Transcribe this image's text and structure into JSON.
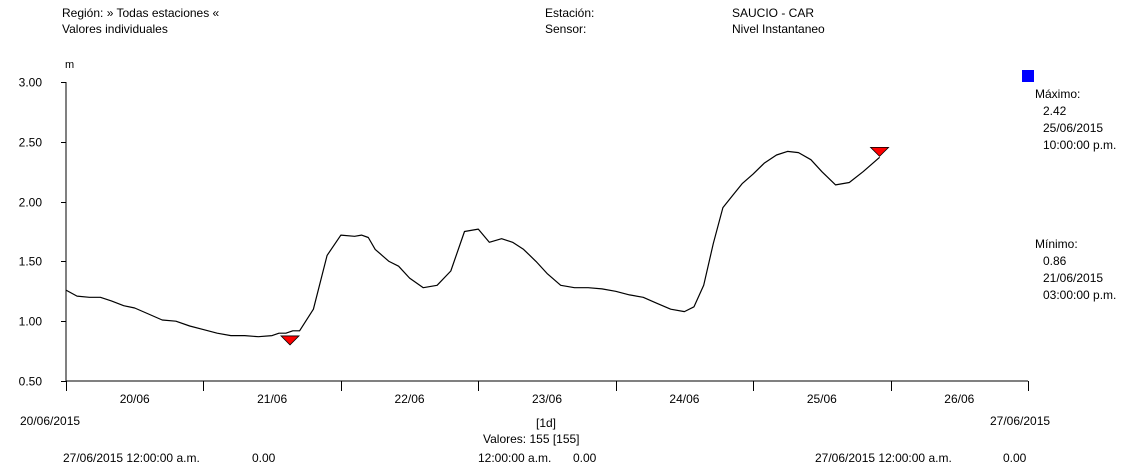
{
  "header": {
    "region": "Región: » Todas estaciones «",
    "values_mode": "Valores individuales",
    "station_label": "Estación:",
    "station_value": "SAUCIO - CAR",
    "sensor_label": "Sensor:",
    "sensor_value": "Nivel Instantaneo"
  },
  "stats": {
    "max_label": "Máximo:",
    "max_value": "2.42",
    "max_date": "25/06/2015",
    "max_time": "10:00:00 p.m.",
    "min_label": "Mínimo:",
    "min_value": "0.86",
    "min_date": "21/06/2015",
    "min_time": "03:00:00 p.m.",
    "marker_color": "#0000ff"
  },
  "footer": {
    "start_date": "20/06/2015",
    "end_date": "27/06/2015",
    "interval": "[1d]",
    "count": "Valores: 155 [155]",
    "left_stamp": "27/06/2015 12:00:00 a.m.",
    "left_value": "0.00",
    "mid_stamp": "12:00:00 a.m.",
    "mid_value": "0.00",
    "right_stamp": "27/06/2015 12:00:00 a.m.",
    "right_value": "0.00"
  },
  "chart_data": {
    "type": "line",
    "ylabel": "m",
    "ylim": [
      0.5,
      3.0
    ],
    "yticks": [
      "0.50",
      "1.00",
      "1.50",
      "2.00",
      "2.50",
      "3.00"
    ],
    "xlim_days": [
      0,
      7
    ],
    "xtick_labels": [
      "20/06",
      "21/06",
      "22/06",
      "23/06",
      "24/06",
      "25/06",
      "26/06"
    ],
    "line_color": "#000000",
    "marker_color": "#ff0000",
    "series": [
      {
        "x": [
          0.0,
          0.08,
          0.17,
          0.25,
          0.33,
          0.42,
          0.5,
          0.6,
          0.7,
          0.8,
          0.9,
          1.0,
          1.1,
          1.2,
          1.3,
          1.4,
          1.5,
          1.55,
          1.6,
          1.65,
          1.7,
          1.8,
          1.9,
          2.0,
          2.1,
          2.15,
          2.2,
          2.25,
          2.3,
          2.35,
          2.42,
          2.5,
          2.6,
          2.7,
          2.8,
          2.9,
          3.0,
          3.08,
          3.17,
          3.25,
          3.33,
          3.42,
          3.5,
          3.6,
          3.7,
          3.8,
          3.9,
          4.0,
          4.1,
          4.2,
          4.3,
          4.4,
          4.5,
          4.57,
          4.64,
          4.71,
          4.78,
          4.85,
          4.92,
          5.0,
          5.08,
          5.17,
          5.25,
          5.33,
          5.42,
          5.5,
          5.6,
          5.7,
          5.8,
          5.92
        ],
        "y": [
          1.26,
          1.21,
          1.2,
          1.2,
          1.17,
          1.13,
          1.11,
          1.06,
          1.01,
          1.0,
          0.96,
          0.93,
          0.9,
          0.88,
          0.88,
          0.87,
          0.88,
          0.9,
          0.9,
          0.92,
          0.92,
          1.1,
          1.55,
          1.72,
          1.71,
          1.72,
          1.7,
          1.6,
          1.55,
          1.5,
          1.46,
          1.36,
          1.28,
          1.3,
          1.42,
          1.75,
          1.77,
          1.66,
          1.69,
          1.66,
          1.6,
          1.5,
          1.4,
          1.3,
          1.28,
          1.28,
          1.27,
          1.25,
          1.22,
          1.2,
          1.15,
          1.1,
          1.08,
          1.12,
          1.3,
          1.65,
          1.95,
          2.05,
          2.15,
          2.23,
          2.32,
          2.39,
          2.42,
          2.41,
          2.35,
          2.25,
          2.14,
          2.16,
          2.25,
          2.37
        ]
      }
    ],
    "markers": [
      {
        "kind": "max",
        "x": 5.92,
        "y": 2.42
      },
      {
        "kind": "min",
        "x": 1.63,
        "y": 0.86
      }
    ]
  }
}
